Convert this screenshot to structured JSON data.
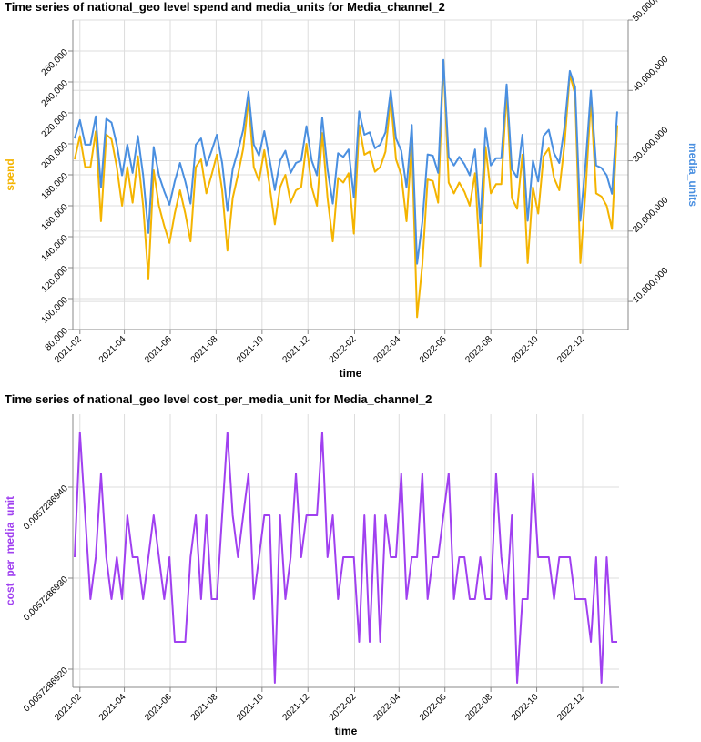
{
  "chart_data": [
    {
      "type": "line",
      "title": "Time series of national_geo level spend and media_units for Media_channel_2",
      "x_label": "time",
      "x": [
        "2021-01-25",
        "2021-02-01",
        "2021-02-08",
        "2021-02-15",
        "2021-02-22",
        "2021-03-01",
        "2021-03-08",
        "2021-03-15",
        "2021-03-22",
        "2021-03-29",
        "2021-04-05",
        "2021-04-12",
        "2021-04-19",
        "2021-04-26",
        "2021-05-03",
        "2021-05-10",
        "2021-05-17",
        "2021-05-24",
        "2021-05-31",
        "2021-06-07",
        "2021-06-14",
        "2021-06-21",
        "2021-06-28",
        "2021-07-05",
        "2021-07-12",
        "2021-07-19",
        "2021-07-26",
        "2021-08-02",
        "2021-08-09",
        "2021-08-16",
        "2021-08-23",
        "2021-08-30",
        "2021-09-06",
        "2021-09-13",
        "2021-09-20",
        "2021-09-27",
        "2021-10-04",
        "2021-10-11",
        "2021-10-18",
        "2021-10-25",
        "2021-11-01",
        "2021-11-08",
        "2021-11-15",
        "2021-11-22",
        "2021-11-29",
        "2021-12-06",
        "2021-12-13",
        "2021-12-20",
        "2021-12-27",
        "2022-01-03",
        "2022-01-10",
        "2022-01-17",
        "2022-01-24",
        "2022-01-31",
        "2022-02-07",
        "2022-02-14",
        "2022-02-21",
        "2022-02-28",
        "2022-03-07",
        "2022-03-14",
        "2022-03-21",
        "2022-03-28",
        "2022-04-04",
        "2022-04-11",
        "2022-04-18",
        "2022-04-25",
        "2022-05-02",
        "2022-05-09",
        "2022-05-16",
        "2022-05-23",
        "2022-05-30",
        "2022-06-06",
        "2022-06-13",
        "2022-06-20",
        "2022-06-27",
        "2022-07-04",
        "2022-07-11",
        "2022-07-18",
        "2022-07-25",
        "2022-08-01",
        "2022-08-08",
        "2022-08-15",
        "2022-08-22",
        "2022-08-29",
        "2022-09-05",
        "2022-09-12",
        "2022-09-19",
        "2022-09-26",
        "2022-10-03",
        "2022-10-10",
        "2022-10-17",
        "2022-10-24",
        "2022-10-31",
        "2022-11-07",
        "2022-11-14",
        "2022-11-21",
        "2022-11-28",
        "2022-12-05",
        "2022-12-12",
        "2022-12-19",
        "2022-12-26",
        "2023-01-02",
        "2023-01-09",
        "2023-01-16"
      ],
      "xlim": [
        "2021-01-25",
        "2023-01-16"
      ],
      "xticks": [
        "2021-02",
        "2021-04",
        "2021-06",
        "2021-08",
        "2021-10",
        "2021-12",
        "2022-02",
        "2022-04",
        "2022-06",
        "2022-08",
        "2022-10",
        "2022-12"
      ],
      "ylim": [
        80000,
        280000
      ],
      "yticks": [
        {
          "value": 80000,
          "label": "80,000"
        },
        {
          "value": 100000,
          "label": "100,000"
        },
        {
          "value": 120000,
          "label": "120,000"
        },
        {
          "value": 140000,
          "label": "140,000"
        },
        {
          "value": 160000,
          "label": "160,000"
        },
        {
          "value": 180000,
          "label": "180,000"
        },
        {
          "value": 200000,
          "label": "200,000"
        },
        {
          "value": 220000,
          "label": "220,000"
        },
        {
          "value": 240000,
          "label": "240,000"
        },
        {
          "value": 260000,
          "label": "260,000"
        }
      ],
      "y2lim": [
        6000000,
        50000000
      ],
      "y2ticks": [
        {
          "value": 10000000,
          "label": "10,000,000"
        },
        {
          "value": 20000000,
          "label": "20,000,000"
        },
        {
          "value": 30000000,
          "label": "30,000,000"
        },
        {
          "value": 40000000,
          "label": "40,000,000"
        },
        {
          "value": 50000000,
          "label": "50,000,000"
        }
      ],
      "grid": true,
      "series": [
        {
          "name": "spend",
          "color": "#f4b400",
          "values": [
            190000,
            205000,
            185000,
            185000,
            208000,
            150000,
            206000,
            203000,
            185000,
            160000,
            185000,
            162000,
            192000,
            160000,
            113000,
            183000,
            160000,
            147000,
            136000,
            155000,
            170000,
            155000,
            137000,
            185000,
            190000,
            168000,
            180000,
            193000,
            170000,
            131000,
            165000,
            180000,
            197000,
            228000,
            185000,
            176000,
            196000,
            173000,
            148000,
            172000,
            180000,
            162000,
            170000,
            172000,
            200000,
            172000,
            160000,
            207000,
            165000,
            137000,
            178000,
            175000,
            181000,
            142000,
            212000,
            193000,
            195000,
            182000,
            185000,
            195000,
            229000,
            190000,
            180000,
            150000,
            201000,
            88000,
            122000,
            177000,
            176000,
            162000,
            254000,
            175000,
            168000,
            175000,
            169000,
            160000,
            181000,
            121000,
            198000,
            168000,
            174000,
            174000,
            234000,
            165000,
            158000,
            193000,
            123000,
            172000,
            155000,
            192000,
            197000,
            178000,
            170000,
            200000,
            245000,
            232000,
            123000,
            170000,
            229000,
            168000,
            166000,
            160000,
            145000,
            212000
          ]
        },
        {
          "name": "media_units",
          "color": "#4a8fe0",
          "axis": "y2",
          "values": [
            33170000,
            35780000,
            32290000,
            32290000,
            36310000,
            26180000,
            35960000,
            35440000,
            32290000,
            27930000,
            32290000,
            28280000,
            33520000,
            27930000,
            19730000,
            31940000,
            27930000,
            25660000,
            23740000,
            27060000,
            29680000,
            27060000,
            23910000,
            32290000,
            33170000,
            29330000,
            31420000,
            33690000,
            29680000,
            22870000,
            28800000,
            31420000,
            34390000,
            39800000,
            32290000,
            30720000,
            34210000,
            30200000,
            25830000,
            30020000,
            31420000,
            28280000,
            29680000,
            30020000,
            34910000,
            30020000,
            27930000,
            36130000,
            28800000,
            23910000,
            31070000,
            30550000,
            31600000,
            24790000,
            37010000,
            33690000,
            34040000,
            31770000,
            32290000,
            34040000,
            39970000,
            33170000,
            31420000,
            26180000,
            35090000,
            15360000,
            21300000,
            30900000,
            30720000,
            28280000,
            44340000,
            30550000,
            29330000,
            30550000,
            29500000,
            27930000,
            31600000,
            21120000,
            34560000,
            29330000,
            30370000,
            30370000,
            40850000,
            28800000,
            27580000,
            33690000,
            21470000,
            30020000,
            27060000,
            33520000,
            34390000,
            31070000,
            29680000,
            34910000,
            42770000,
            40500000,
            21470000,
            29680000,
            39970000,
            29330000,
            28980000,
            27930000,
            25310000,
            37010000
          ]
        }
      ]
    },
    {
      "type": "line",
      "title": "Time series of national_geo level cost_per_media_unit for Media_channel_2",
      "x_label": "time",
      "x": [
        "2021-01-25",
        "2021-02-01",
        "2021-02-08",
        "2021-02-15",
        "2021-02-22",
        "2021-03-01",
        "2021-03-08",
        "2021-03-15",
        "2021-03-22",
        "2021-03-29",
        "2021-04-05",
        "2021-04-12",
        "2021-04-19",
        "2021-04-26",
        "2021-05-03",
        "2021-05-10",
        "2021-05-17",
        "2021-05-24",
        "2021-05-31",
        "2021-06-07",
        "2021-06-14",
        "2021-06-21",
        "2021-06-28",
        "2021-07-05",
        "2021-07-12",
        "2021-07-19",
        "2021-07-26",
        "2021-08-02",
        "2021-08-09",
        "2021-08-16",
        "2021-08-23",
        "2021-08-30",
        "2021-09-06",
        "2021-09-13",
        "2021-09-20",
        "2021-09-27",
        "2021-10-04",
        "2021-10-11",
        "2021-10-18",
        "2021-10-25",
        "2021-11-01",
        "2021-11-08",
        "2021-11-15",
        "2021-11-22",
        "2021-11-29",
        "2021-12-06",
        "2021-12-13",
        "2021-12-20",
        "2021-12-27",
        "2022-01-03",
        "2022-01-10",
        "2022-01-17",
        "2022-01-24",
        "2022-01-31",
        "2022-02-07",
        "2022-02-14",
        "2022-02-21",
        "2022-02-28",
        "2022-03-07",
        "2022-03-14",
        "2022-03-21",
        "2022-03-28",
        "2022-04-04",
        "2022-04-11",
        "2022-04-18",
        "2022-04-25",
        "2022-05-02",
        "2022-05-09",
        "2022-05-16",
        "2022-05-23",
        "2022-05-30",
        "2022-06-06",
        "2022-06-13",
        "2022-06-20",
        "2022-06-27",
        "2022-07-04",
        "2022-07-11",
        "2022-07-18",
        "2022-07-25",
        "2022-08-01",
        "2022-08-08",
        "2022-08-15",
        "2022-08-22",
        "2022-08-29",
        "2022-09-05",
        "2022-09-12",
        "2022-09-19",
        "2022-09-26",
        "2022-10-03",
        "2022-10-10",
        "2022-10-17",
        "2022-10-24",
        "2022-10-31",
        "2022-11-07",
        "2022-11-14",
        "2022-11-21",
        "2022-11-28",
        "2022-12-05",
        "2022-12-12",
        "2022-12-19",
        "2022-12-26",
        "2023-01-02",
        "2023-01-09",
        "2023-01-16"
      ],
      "xlim": [
        "2021-01-25",
        "2023-01-16"
      ],
      "xticks": [
        "2021-02",
        "2021-04",
        "2021-06",
        "2021-08",
        "2021-10",
        "2021-12",
        "2022-02",
        "2022-04",
        "2022-06",
        "2022-08",
        "2022-10",
        "2022-12"
      ],
      "ylim": [
        0.0057286918,
        0.0057286948
      ],
      "yticks": [
        {
          "value": 0.005728692,
          "label": "0.0057286920"
        },
        {
          "value": 0.005728693,
          "label": "0.0057286930"
        },
        {
          "value": 0.005728694,
          "label": "0.0057286940"
        }
      ],
      "grid": true,
      "series": [
        {
          "name": "cost_per_media_unit",
          "color": "#a040f0",
          "values": [
            0.00572869323,
            0.0057286946,
            0.00572869369,
            0.00572869277,
            0.00572869323,
            0.00572869415,
            0.00572869323,
            0.00572869277,
            0.00572869323,
            0.00572869277,
            0.00572869369,
            0.00572869323,
            0.00572869323,
            0.00572869277,
            0.00572869323,
            0.00572869369,
            0.00572869323,
            0.00572869277,
            0.00572869323,
            0.0057286923,
            0.0057286923,
            0.0057286923,
            0.00572869323,
            0.00572869369,
            0.00572869277,
            0.00572869369,
            0.00572869277,
            0.00572869277,
            0.00572869369,
            0.0057286946,
            0.00572869369,
            0.00572869323,
            0.00572869369,
            0.00572869415,
            0.00572869277,
            0.00572869323,
            0.00572869369,
            0.00572869369,
            0.00572869185,
            0.00572869369,
            0.00572869277,
            0.00572869323,
            0.00572869415,
            0.00572869323,
            0.00572869369,
            0.00572869369,
            0.00572869369,
            0.0057286946,
            0.00572869323,
            0.00572869369,
            0.00572869277,
            0.00572869323,
            0.00572869323,
            0.00572869323,
            0.0057286923,
            0.00572869369,
            0.0057286923,
            0.00572869369,
            0.0057286923,
            0.00572869369,
            0.00572869323,
            0.00572869323,
            0.00572869415,
            0.00572869277,
            0.00572869323,
            0.00572869323,
            0.00572869415,
            0.00572869277,
            0.00572869323,
            0.00572869323,
            0.00572869369,
            0.00572869415,
            0.00572869277,
            0.00572869323,
            0.00572869323,
            0.00572869277,
            0.00572869277,
            0.00572869323,
            0.00572869277,
            0.00572869277,
            0.00572869415,
            0.00572869323,
            0.00572869277,
            0.00572869369,
            0.00572869185,
            0.00572869277,
            0.00572869277,
            0.00572869415,
            0.00572869323,
            0.00572869323,
            0.00572869323,
            0.00572869277,
            0.00572869323,
            0.00572869323,
            0.00572869323,
            0.00572869277,
            0.00572869277,
            0.00572869277,
            0.0057286923,
            0.00572869323,
            0.00572869185,
            0.00572869323,
            0.0057286923,
            0.0057286923
          ]
        }
      ]
    }
  ]
}
